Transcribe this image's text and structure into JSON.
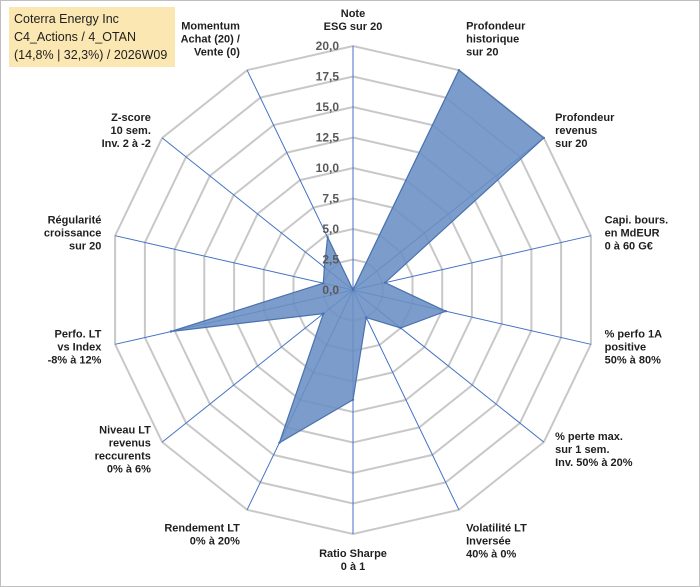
{
  "title_box": {
    "line1": "Coterra Energy Inc",
    "line2": "C4_Actions / 4_OTAN",
    "line3": "(14,8% | 32,3%) / 2026W09"
  },
  "chart_data": {
    "type": "radar",
    "r_range": [
      0,
      20
    ],
    "r_ticks": [
      "0,0",
      "2,5",
      "5,0",
      "7,5",
      "10,0",
      "12,5",
      "15,0",
      "17,5",
      "20,0"
    ],
    "grid": true,
    "axes": [
      {
        "label_lines": [
          "Note",
          "ESG sur 20"
        ],
        "value": 0
      },
      {
        "label_lines": [
          "Profondeur",
          "historique",
          "sur 20"
        ],
        "value": 20
      },
      {
        "label_lines": [
          "Profondeur",
          "revenus",
          "sur 20"
        ],
        "value": 20
      },
      {
        "label_lines": [
          "Capi. bours.",
          "en MdEUR",
          "0 à 60 G€"
        ],
        "value": 2.7
      },
      {
        "label_lines": [
          "% perfo 1A",
          "positive",
          "50% à 80%"
        ],
        "value": 7.8
      },
      {
        "label_lines": [
          "% perte max.",
          "sur 1 sem.",
          "Inv. 50% à 20%"
        ],
        "value": 5
      },
      {
        "label_lines": [
          "Volatilité LT",
          "Inversée",
          "40% à 0%"
        ],
        "value": 2.5
      },
      {
        "label_lines": [
          "Ratio Sharpe",
          "0 à 1"
        ],
        "value": 9
      },
      {
        "label_lines": [
          "Rendement LT",
          "0% à 20%"
        ],
        "value": 13.9
      },
      {
        "label_lines": [
          "Niveau LT",
          "revenus",
          "reccurents",
          "0% à 6%"
        ],
        "value": 3.1
      },
      {
        "label_lines": [
          "Perfo. LT",
          "vs Index",
          "-8% à 12%"
        ],
        "value": 15.3
      },
      {
        "label_lines": [
          "Régularité",
          "croissance",
          "sur 20"
        ],
        "value": 2.5
      },
      {
        "label_lines": [
          "Z-score",
          "10 sem.",
          "Inv. 2 à -2"
        ],
        "value": 3
      },
      {
        "label_lines": [
          "Momentum",
          "Achat (20) /",
          "Vente (0)"
        ],
        "value": 4.8
      }
    ],
    "colors": {
      "fill": "#6a8fc4",
      "stroke": "#4a72b0",
      "grid": "#c8c8c8",
      "spokes": "#4472c4"
    }
  }
}
